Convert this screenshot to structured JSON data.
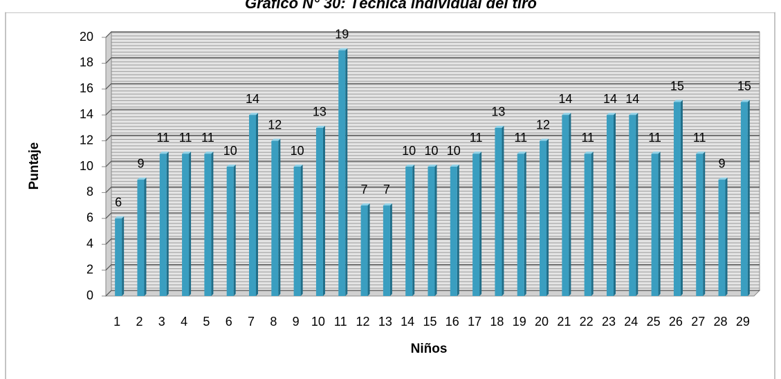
{
  "chart_data": {
    "type": "bar",
    "title": "Gráfico N° 30: Técnica individual del tiro",
    "x_label": "Niños",
    "y_label": "Puntaje",
    "categories": [
      "1",
      "2",
      "3",
      "4",
      "5",
      "6",
      "7",
      "8",
      "9",
      "10",
      "11",
      "12",
      "13",
      "14",
      "15",
      "16",
      "17",
      "18",
      "19",
      "20",
      "21",
      "22",
      "23",
      "24",
      "25",
      "26",
      "27",
      "28",
      "29"
    ],
    "values": [
      6,
      9,
      11,
      11,
      11,
      10,
      14,
      12,
      10,
      13,
      19,
      7,
      7,
      10,
      10,
      10,
      11,
      13,
      11,
      12,
      14,
      11,
      14,
      14,
      11,
      15,
      11,
      9,
      15
    ],
    "color": "#3a9ec0",
    "ylim": [
      0,
      20
    ],
    "yticks": [
      0,
      2,
      4,
      6,
      8,
      10,
      12,
      14,
      16,
      18,
      20
    ],
    "grid": true
  }
}
